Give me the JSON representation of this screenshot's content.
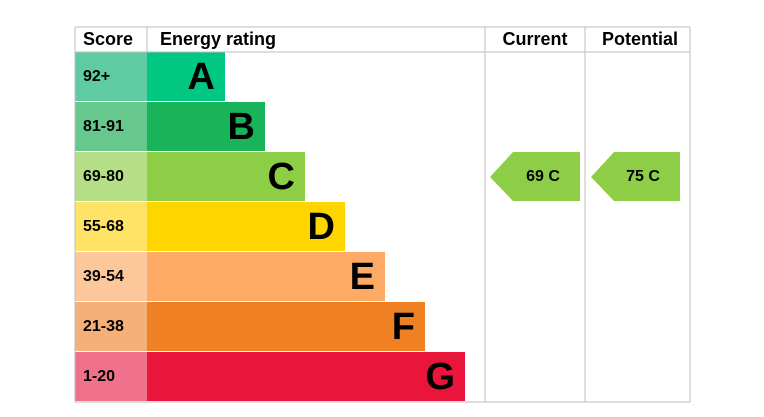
{
  "header": {
    "score": "Score",
    "rating": "Energy rating",
    "current": "Current",
    "potential": "Potential"
  },
  "bands": [
    {
      "score": "92+",
      "letter": "A"
    },
    {
      "score": "81-91",
      "letter": "B"
    },
    {
      "score": "69-80",
      "letter": "C"
    },
    {
      "score": "55-68",
      "letter": "D"
    },
    {
      "score": "39-54",
      "letter": "E"
    },
    {
      "score": "21-38",
      "letter": "F"
    },
    {
      "score": "1-20",
      "letter": "G"
    }
  ],
  "current": "69 C",
  "potential": "75 C"
}
